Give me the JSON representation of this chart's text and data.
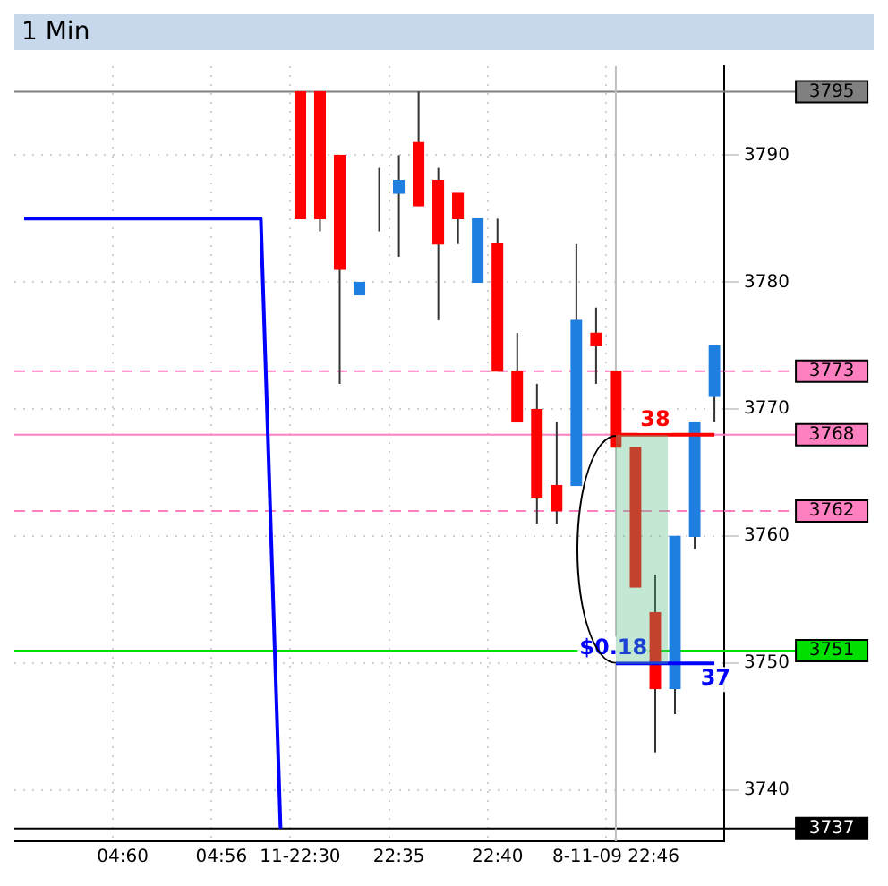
{
  "chart_data": {
    "type": "candlestick",
    "title": "1 Min",
    "categories": [
      null,
      null,
      null,
      null,
      null,
      "04:60",
      null,
      null,
      null,
      null,
      "04:56",
      null,
      null,
      null,
      "11-22:30",
      null,
      null,
      null,
      null,
      "22:35",
      null,
      null,
      null,
      null,
      "22:40",
      null,
      null,
      null,
      null,
      null,
      "8-11-09 22:46",
      null,
      null,
      null,
      null,
      null
    ],
    "ohlc": [
      null,
      null,
      null,
      null,
      null,
      null,
      null,
      null,
      null,
      null,
      null,
      null,
      null,
      null,
      [
        3795,
        3795,
        3785,
        3785
      ],
      [
        3795,
        3795,
        3784,
        3785
      ],
      [
        3790,
        3790,
        3772,
        3781
      ],
      [
        3779,
        3780,
        3779,
        3780
      ],
      [
        3785,
        3789,
        3784,
        3785
      ],
      [
        3787,
        3790,
        3782,
        3788
      ],
      [
        3791,
        3795,
        3786,
        3786
      ],
      [
        3788,
        3789,
        3777,
        3783
      ],
      [
        3787,
        3787,
        3783,
        3785
      ],
      [
        3780,
        3785,
        3780,
        3785
      ],
      [
        3783,
        3785,
        3773,
        3773
      ],
      [
        3773,
        3776,
        3769,
        3769
      ],
      [
        3770,
        3772,
        3761,
        3763
      ],
      [
        3764,
        3769,
        3761,
        3762
      ],
      [
        3764,
        3783,
        3764,
        3777
      ],
      [
        3776,
        3778,
        3772,
        3775
      ],
      [
        3773,
        3773,
        3767,
        3767
      ],
      [
        3767,
        3767,
        3756,
        3756
      ],
      [
        3754,
        3757,
        3743,
        3748
      ],
      [
        3748,
        3760,
        3746,
        3760
      ],
      [
        3760,
        3769,
        3759,
        3769
      ],
      [
        3771,
        3775,
        3769,
        3775
      ]
    ],
    "colors": [
      null,
      null,
      null,
      null,
      null,
      null,
      null,
      null,
      null,
      null,
      null,
      null,
      null,
      null,
      "#ff0000",
      "#ff0000",
      "#ff0000",
      "#1e7fe0",
      "#ff0000",
      "#1e7fe0",
      "#ff0000",
      "#ff0000",
      "#ff0000",
      "#1e7fe0",
      "#ff0000",
      "#ff0000",
      "#ff0000",
      "#ff0000",
      "#1e7fe0",
      "#ff0000",
      "#ff0000",
      "#ff0000",
      "#ff0000",
      "#1e7fe0",
      "#1e7fe0",
      "#1e7fe0"
    ],
    "series": [
      {
        "type": "line",
        "color": "#0000ff",
        "values": [
          3785,
          3785,
          3785,
          3785,
          3785,
          3785,
          3785,
          3785,
          3785,
          3785,
          3785,
          3785,
          3785,
          3737,
          null,
          null,
          null,
          null,
          null,
          null,
          null,
          null,
          null,
          null,
          null,
          null,
          null,
          null,
          null,
          null,
          null,
          null,
          null,
          null,
          null,
          null
        ]
      },
      {
        "type": "line",
        "color": "#ff0000",
        "values": [
          null,
          null,
          null,
          null,
          null,
          null,
          null,
          null,
          null,
          null,
          null,
          null,
          null,
          null,
          null,
          null,
          null,
          null,
          null,
          null,
          null,
          null,
          null,
          null,
          null,
          null,
          null,
          null,
          null,
          null,
          3768,
          3768,
          3768,
          3768,
          3768,
          3768
        ]
      },
      {
        "type": "line",
        "color": "#0000ff",
        "values": [
          null,
          null,
          null,
          null,
          null,
          null,
          null,
          null,
          null,
          null,
          null,
          null,
          null,
          null,
          null,
          null,
          null,
          null,
          null,
          null,
          null,
          null,
          null,
          null,
          null,
          null,
          null,
          null,
          null,
          null,
          3750,
          3750,
          3750,
          3750,
          3750,
          3750
        ]
      }
    ],
    "ylim": [
      3736,
      3797
    ],
    "yticks": [
      3740,
      3750,
      3760,
      3770,
      3780,
      3790
    ],
    "grid": true,
    "ref_lines": [
      {
        "axis": "y",
        "value": 3795,
        "label": "3795",
        "color": "#808080"
      },
      {
        "axis": "y",
        "value": 3773,
        "label": "3773",
        "color": "#ff80c0",
        "line_style": "dashed"
      },
      {
        "axis": "y",
        "value": 3768,
        "label": "3768",
        "color": "#ff80c0"
      },
      {
        "axis": "y",
        "value": 3762,
        "label": "3762",
        "color": "#ff80c0",
        "line_style": "dashed"
      },
      {
        "axis": "y",
        "value": 3751,
        "label": "3751",
        "color": "#00e000"
      },
      {
        "axis": "y",
        "value": 3737,
        "label": "3737",
        "color": "#000000"
      },
      {
        "axis": "x",
        "value": "8-11-09 22:46",
        "color": "#c0c0c0"
      }
    ],
    "annotations": [
      {
        "text": "38",
        "y": 3768
      },
      {
        "text": "$0.18",
        "y": 3750
      },
      {
        "text": "37",
        "y": 3750
      }
    ]
  }
}
